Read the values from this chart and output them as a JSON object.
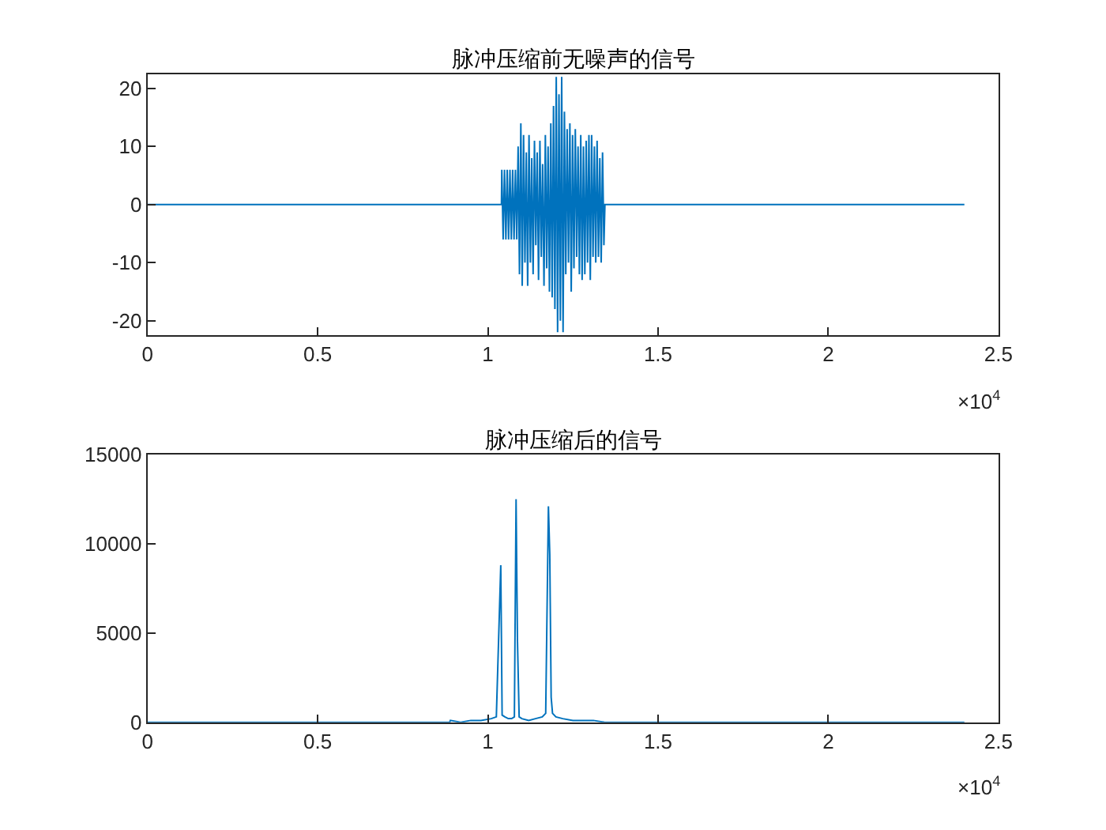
{
  "chart_data": [
    {
      "type": "line",
      "title": "脉冲压缩前无噪声的信号",
      "annotations": [
        "×10$^{4}$"
      ],
      "x": [
        0,
        1.04,
        1.041,
        1.045,
        1.049,
        1.053,
        1.057,
        1.061,
        1.065,
        1.069,
        1.073,
        1.077,
        1.081,
        1.085,
        1.089,
        1.093,
        1.097,
        1.101,
        1.105,
        1.109,
        1.113,
        1.117,
        1.121,
        1.125,
        1.129,
        1.133,
        1.137,
        1.141,
        1.145,
        1.149,
        1.153,
        1.157,
        1.161,
        1.165,
        1.169,
        1.173,
        1.177,
        1.181,
        1.185,
        1.189,
        1.193,
        1.197,
        1.201,
        1.205,
        1.209,
        1.213,
        1.217,
        1.221,
        1.225,
        1.229,
        1.233,
        1.237,
        1.241,
        1.245,
        1.249,
        1.253,
        1.257,
        1.261,
        1.265,
        1.269,
        1.273,
        1.277,
        1.281,
        1.285,
        1.289,
        1.293,
        1.297,
        1.301,
        1.305,
        1.309,
        1.313,
        1.317,
        1.321,
        1.325,
        1.329,
        1.333,
        1.337,
        1.341,
        1.344,
        2.4
      ],
      "series": [
        {
          "color": "#0072bd",
          "values": [
            0,
            0,
            6,
            -6,
            6,
            -6,
            6,
            -6,
            6,
            -6,
            6,
            -6,
            6,
            -6,
            10,
            -12,
            14,
            -14,
            12,
            -10,
            9,
            -14,
            12,
            -10,
            8,
            -12,
            11,
            -7,
            9,
            -13,
            11,
            -9,
            7,
            -14,
            12,
            -11,
            10,
            -15,
            14,
            -16,
            17,
            -18,
            22,
            -22,
            19,
            -20,
            22,
            -22,
            16,
            -12,
            13,
            -10,
            14,
            -15,
            12,
            -11,
            13,
            -9,
            10,
            -12,
            12,
            -13,
            10,
            -12,
            11,
            -10,
            12,
            -13,
            12,
            -9,
            10,
            -10,
            11,
            -9,
            8,
            -10,
            9,
            -7,
            0,
            0
          ]
        }
      ],
      "xlim": [
        0,
        2.5
      ],
      "xticks": [
        0,
        0.5,
        1,
        1.5,
        2,
        2.5
      ],
      "ylim": [
        -22.5,
        22.5
      ],
      "yticks": [
        -20,
        -10,
        0,
        10,
        20
      ]
    },
    {
      "type": "line",
      "title": "脉冲压缩后的信号",
      "annotations": [
        "×10$^{4}$"
      ],
      "x": [
        0,
        0.888,
        0.89,
        0.92,
        0.95,
        0.98,
        1.01,
        1.025,
        1.033,
        1.038,
        1.042,
        1.05,
        1.06,
        1.07,
        1.078,
        1.083,
        1.087,
        1.092,
        1.1,
        1.12,
        1.14,
        1.16,
        1.17,
        1.178,
        1.182,
        1.186,
        1.19,
        1.2,
        1.22,
        1.25,
        1.28,
        1.31,
        1.343,
        1.345,
        2.4
      ],
      "series": [
        {
          "color": "#0072bd",
          "values": [
            0,
            0,
            100,
            0,
            100,
            100,
            200,
            300,
            5500,
            8800,
            400,
            300,
            200,
            200,
            300,
            12500,
            4600,
            300,
            200,
            100,
            200,
            300,
            500,
            12100,
            9400,
            1400,
            500,
            300,
            200,
            100,
            100,
            100,
            0,
            0,
            0
          ]
        }
      ],
      "xlim": [
        0,
        2.5
      ],
      "xticks": [
        0,
        0.5,
        1,
        1.5,
        2,
        2.5
      ],
      "ylim": [
        0,
        15000
      ],
      "yticks": [
        0,
        5000,
        10000,
        15000
      ]
    }
  ]
}
